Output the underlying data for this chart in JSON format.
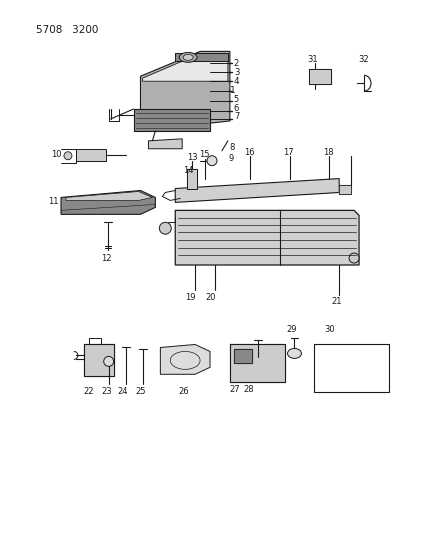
{
  "background_color": "#ffffff",
  "line_color": "#1a1a1a",
  "text_color": "#1a1a1a",
  "fig_width": 4.28,
  "fig_height": 5.33,
  "dpi": 100,
  "header": "5708  3200"
}
